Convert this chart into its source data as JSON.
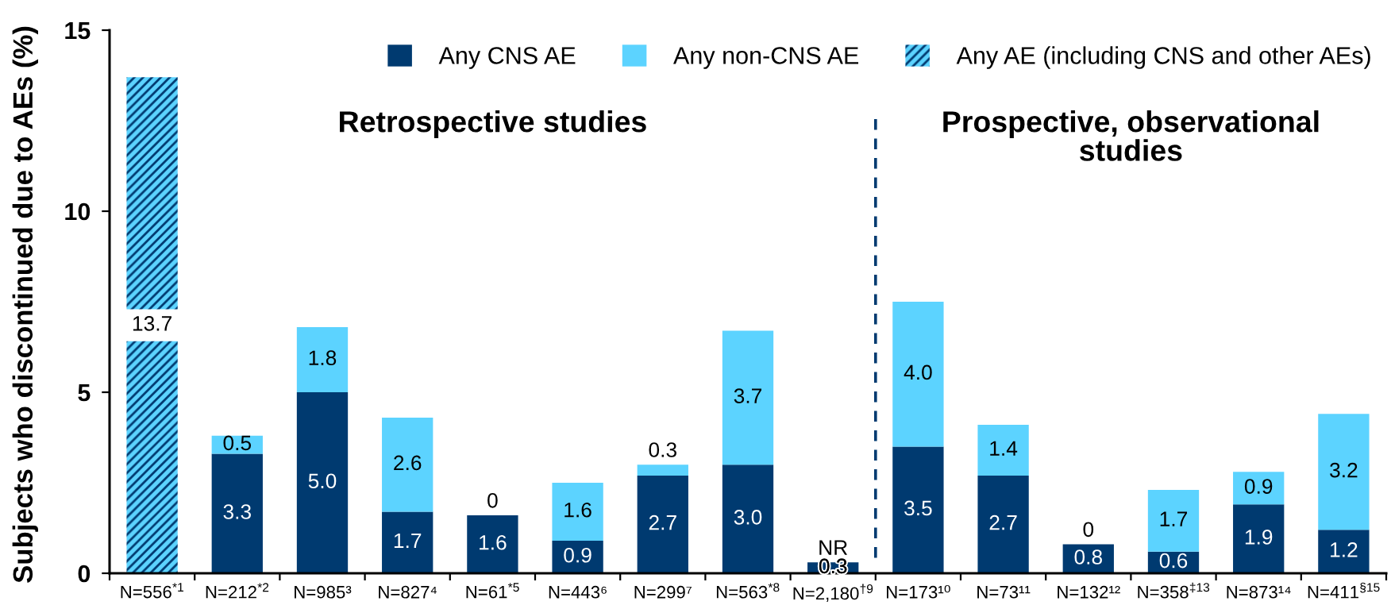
{
  "chart_data": {
    "type": "bar",
    "stacked": true,
    "ylabel": "Subjects who discontinued due to AEs (%)",
    "categories": [
      "N=556$^{*1}$",
      "N=212$^{*2}$",
      "N=985³",
      "N=827⁴",
      "N=61$^{*5}$",
      "N=443⁶",
      "N=299⁷",
      "N=563$^{*8}$",
      "N=2,180$^{†9}$",
      "N=173¹⁰",
      "N=73¹¹",
      "N=132¹²",
      "N=358$^{‡13}$",
      "N=873¹⁴",
      "N=411$^{§15}$"
    ],
    "series": [
      {
        "name": "Any CNS AE",
        "color": "#003a70",
        "values": [
          null,
          3.3,
          5.0,
          1.7,
          1.6,
          0.9,
          2.7,
          3.0,
          0.3,
          3.5,
          2.7,
          0.8,
          0.6,
          1.9,
          1.2
        ],
        "value_labels": [
          null,
          "3.3",
          "5.0",
          "1.7",
          "1.6",
          "0.9",
          "2.7",
          "3.0",
          "0.3",
          "3.5",
          "2.7",
          "0.8",
          "0.6",
          "1.9",
          "1.2"
        ]
      },
      {
        "name": "Any non-CNS AE",
        "color": "#5cd3ff",
        "values": [
          null,
          0.5,
          1.8,
          2.6,
          0,
          1.6,
          0.3,
          3.7,
          null,
          4.0,
          1.4,
          0,
          1.7,
          0.9,
          3.2
        ],
        "value_labels": [
          null,
          "0.5",
          "1.8",
          "2.6",
          "0",
          "1.6",
          "0.3",
          "3.7",
          "NR",
          "4.0",
          "1.4",
          "0",
          "1.7",
          "0.9",
          "3.2"
        ]
      },
      {
        "name": "Any AE (including CNS and other AEs)",
        "color": "#5cd3ff",
        "values": [
          13.7,
          null,
          null,
          null,
          null,
          null,
          null,
          null,
          null,
          null,
          null,
          null,
          null,
          null,
          null
        ],
        "value_labels": [
          "13.7",
          null,
          null,
          null,
          null,
          null,
          null,
          null,
          null,
          null,
          null,
          null,
          null,
          null,
          null
        ]
      }
    ],
    "ylim": [
      0,
      15
    ],
    "yticks": [
      0,
      5,
      10,
      15
    ],
    "legend": "top right",
    "annotations": [
      "Retrospective studies",
      "Prospective, observational studies"
    ]
  }
}
